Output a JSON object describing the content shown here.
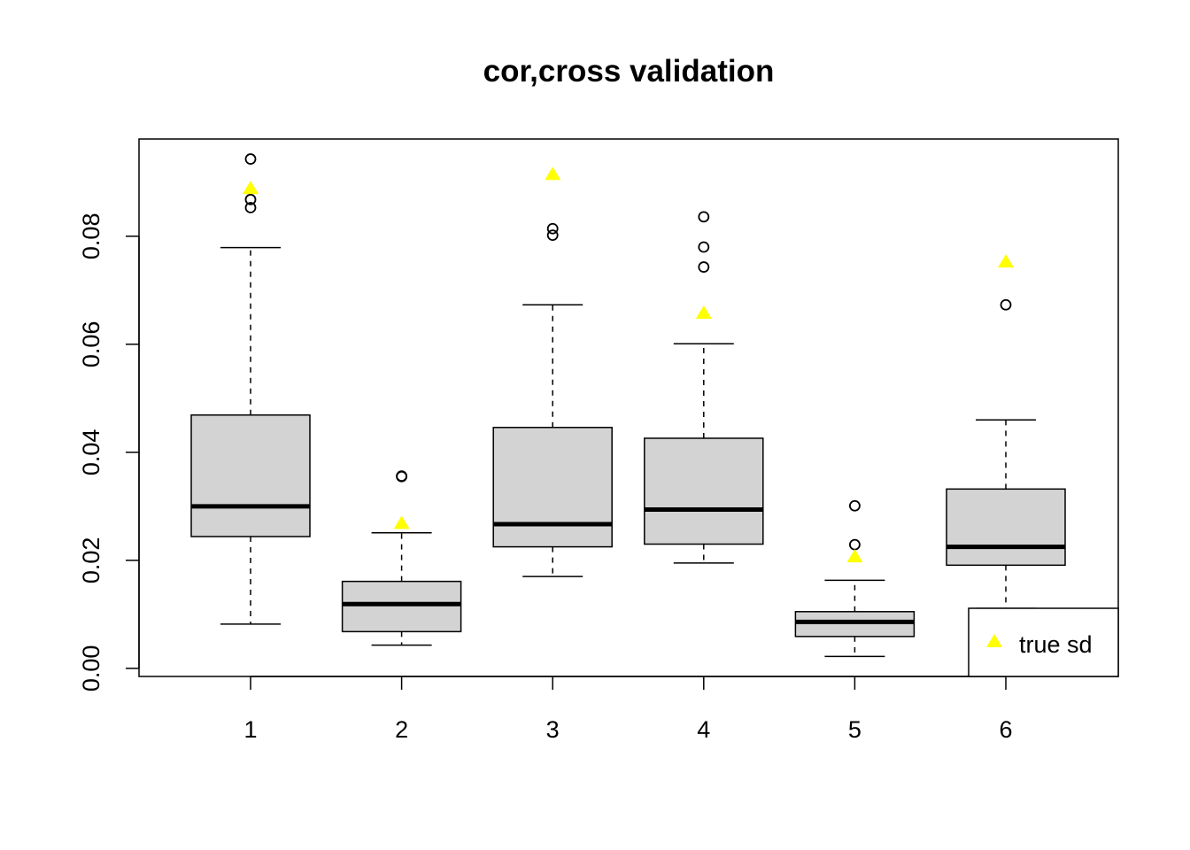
{
  "chart_data": {
    "type": "boxplot",
    "title": "cor,cross validation",
    "xlabel": "",
    "ylabel": "",
    "categories": [
      "1",
      "2",
      "3",
      "4",
      "5",
      "6"
    ],
    "ylim": [
      -0.0015,
      0.098
    ],
    "yticks": [
      0.0,
      0.02,
      0.04,
      0.06,
      0.08
    ],
    "ytick_labels": [
      "0.00",
      "0.02",
      "0.04",
      "0.06",
      "0.08"
    ],
    "grid": false,
    "box_fill": "#d3d3d3",
    "marker_color": "#ffff00",
    "boxes": [
      {
        "category": "1",
        "whisker_low": 0.0082,
        "q1": 0.0244,
        "median": 0.03,
        "q3": 0.0469,
        "whisker_high": 0.0779,
        "outliers": [
          0.0943,
          0.0868,
          0.0853
        ]
      },
      {
        "category": "2",
        "whisker_low": 0.0043,
        "q1": 0.0068,
        "median": 0.0119,
        "q3": 0.0161,
        "whisker_high": 0.0251,
        "outliers": [
          0.0355,
          0.0356
        ]
      },
      {
        "category": "3",
        "whisker_low": 0.017,
        "q1": 0.0225,
        "median": 0.0267,
        "q3": 0.0446,
        "whisker_high": 0.0673,
        "outliers": [
          0.0814,
          0.0802
        ]
      },
      {
        "category": "4",
        "whisker_low": 0.0195,
        "q1": 0.023,
        "median": 0.0294,
        "q3": 0.0426,
        "whisker_high": 0.0601,
        "outliers": [
          0.0836,
          0.078,
          0.0743
        ]
      },
      {
        "category": "5",
        "whisker_low": 0.0022,
        "q1": 0.0059,
        "median": 0.0086,
        "q3": 0.0105,
        "whisker_high": 0.0163,
        "outliers": [
          0.0301,
          0.0229
        ]
      },
      {
        "category": "6",
        "whisker_low": 0.0111,
        "q1": 0.0191,
        "median": 0.0225,
        "q3": 0.0332,
        "whisker_high": 0.046,
        "outliers": [
          0.0673
        ]
      }
    ],
    "true_sd": [
      {
        "category": "1",
        "value": 0.0888
      },
      {
        "category": "2",
        "value": 0.0268
      },
      {
        "category": "3",
        "value": 0.0914
      },
      {
        "category": "4",
        "value": 0.0657
      },
      {
        "category": "5",
        "value": 0.0206
      },
      {
        "category": "6",
        "value": 0.0752
      }
    ],
    "legend": {
      "position": "bottom-right",
      "label": "true sd"
    }
  }
}
